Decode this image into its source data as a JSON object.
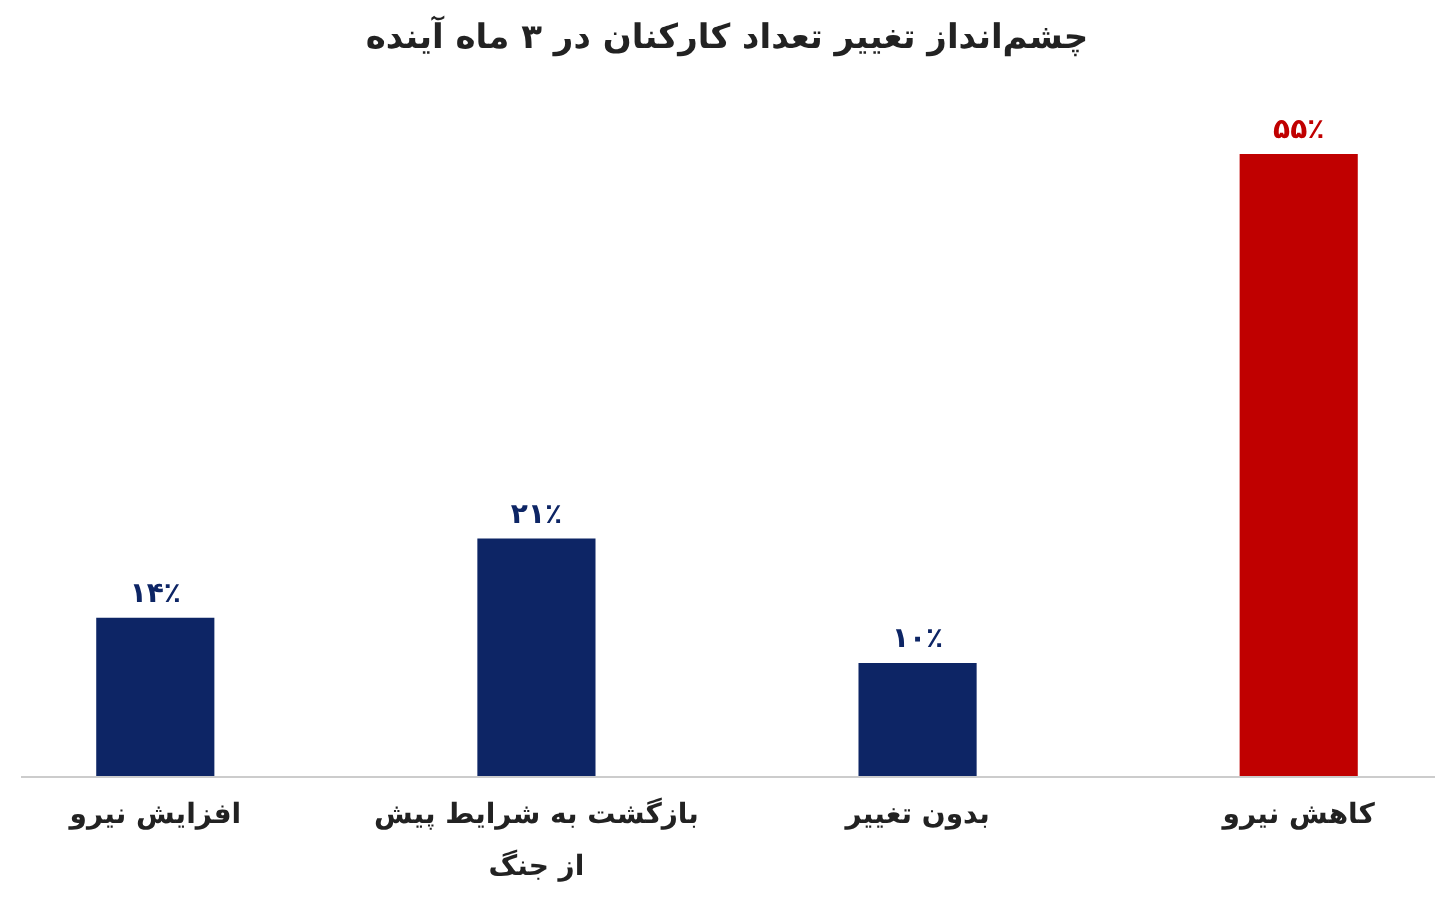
{
  "chart_data": {
    "type": "bar",
    "title": "چشم‌انداز تغییر تعداد کارکنان در ۳ ماه آینده",
    "categories": [
      "افزایش نیرو",
      "بازگشت به شرایط پیش از جنگ",
      "بدون تغییر",
      "کاهش نیرو"
    ],
    "values": [
      14,
      21,
      10,
      55
    ],
    "colors": [
      "#0d2565",
      "#0d2565",
      "#0d2565",
      "#c00000"
    ],
    "value_labels": [
      "۱۴٪",
      "۲۱٪",
      "۱۰٪",
      "۵۵٪"
    ]
  }
}
